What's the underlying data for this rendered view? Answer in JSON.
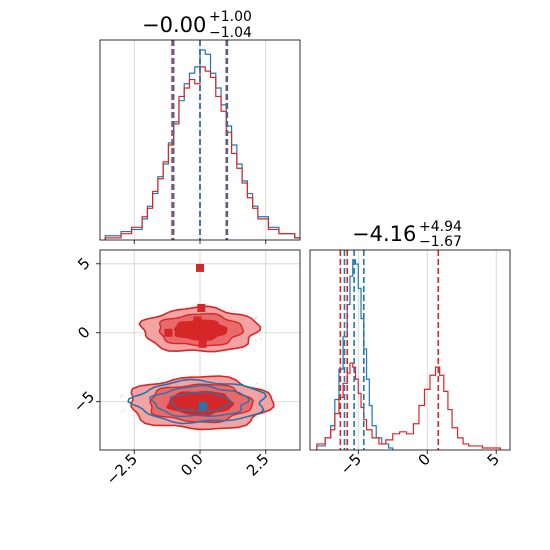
{
  "chart_data": {
    "type": "corner",
    "colors": {
      "blue": "#1f77b4",
      "red": "#d62728"
    },
    "series": [
      {
        "color": "blue"
      },
      {
        "color": "red"
      }
    ],
    "panels": [
      {
        "id": "hist-x",
        "type": "histogram",
        "title": {
          "value": "−0.00",
          "plus": "+1.00",
          "minus": "−1.04"
        },
        "xlim": [
          -3.8,
          3.8
        ],
        "grid": true,
        "tick_labels_shown": false,
        "vlines": {
          "blue": [
            -1.0,
            0.0,
            1.04
          ],
          "red": [
            -1.06,
            0.0,
            1.0
          ]
        },
        "hist_blue": [
          [
            -3.6,
            0.2
          ],
          [
            -3.0,
            0.4
          ],
          [
            -2.6,
            0.5
          ],
          [
            -2.2,
            1.0
          ],
          [
            -2.0,
            1.6
          ],
          [
            -1.8,
            2.2
          ],
          [
            -1.6,
            3.0
          ],
          [
            -1.4,
            3.6
          ],
          [
            -1.2,
            4.6
          ],
          [
            -1.0,
            5.6
          ],
          [
            -0.8,
            6.6
          ],
          [
            -0.6,
            7.4
          ],
          [
            -0.4,
            7.9
          ],
          [
            -0.2,
            8.2
          ],
          [
            0.0,
            9.0
          ],
          [
            0.2,
            8.8
          ],
          [
            0.4,
            7.9
          ],
          [
            0.6,
            7.2
          ],
          [
            0.8,
            6.4
          ],
          [
            1.0,
            5.4
          ],
          [
            1.2,
            4.5
          ],
          [
            1.4,
            3.6
          ],
          [
            1.6,
            2.8
          ],
          [
            1.8,
            2.2
          ],
          [
            2.0,
            1.6
          ],
          [
            2.2,
            1.1
          ],
          [
            2.6,
            0.6
          ],
          [
            3.0,
            0.3
          ],
          [
            3.6,
            0.1
          ]
        ],
        "hist_red": [
          [
            -3.6,
            0.1
          ],
          [
            -3.0,
            0.3
          ],
          [
            -2.6,
            0.6
          ],
          [
            -2.2,
            1.1
          ],
          [
            -2.0,
            1.5
          ],
          [
            -1.8,
            2.3
          ],
          [
            -1.6,
            2.9
          ],
          [
            -1.4,
            3.7
          ],
          [
            -1.2,
            4.5
          ],
          [
            -1.0,
            5.5
          ],
          [
            -0.8,
            6.8
          ],
          [
            -0.6,
            7.2
          ],
          [
            -0.4,
            7.6
          ],
          [
            -0.2,
            7.4
          ],
          [
            0.0,
            8.2
          ],
          [
            0.2,
            8.0
          ],
          [
            0.4,
            7.7
          ],
          [
            0.6,
            6.8
          ],
          [
            0.8,
            6.1
          ],
          [
            1.0,
            5.1
          ],
          [
            1.2,
            4.1
          ],
          [
            1.4,
            3.4
          ],
          [
            1.6,
            2.7
          ],
          [
            1.8,
            2.0
          ],
          [
            2.0,
            1.5
          ],
          [
            2.2,
            1.0
          ],
          [
            2.6,
            0.5
          ],
          [
            3.0,
            0.3
          ],
          [
            3.6,
            0.1
          ]
        ]
      },
      {
        "id": "scatter-xy",
        "type": "contour",
        "xlim": [
          -3.8,
          3.8
        ],
        "ylim": [
          -8.5,
          6.0
        ],
        "grid": true,
        "xticks": [
          -2.5,
          0.0,
          2.5
        ],
        "xtick_labels": [
          "−2.5",
          "0.0",
          "2.5"
        ],
        "yticks": [
          -5,
          0,
          5
        ],
        "ytick_labels": [
          "−5",
          "0",
          "5"
        ],
        "clusters": [
          {
            "center": [
              0.0,
              0.2
            ],
            "half_width": [
              2.2,
              1.6
            ],
            "series": "red"
          },
          {
            "center": [
              0.0,
              -5.1
            ],
            "half_width": [
              2.7,
              1.9
            ],
            "series": "red"
          },
          {
            "center": [
              0.0,
              -5.0
            ],
            "half_width": [
              2.5,
              1.5
            ],
            "series": "blue"
          }
        ],
        "truth_markers": [
          {
            "x": 0.0,
            "y": 4.7,
            "series": "red"
          },
          {
            "x": 0.05,
            "y": 1.8,
            "series": "red"
          },
          {
            "x": -0.1,
            "y": 0.9,
            "series": "red"
          },
          {
            "x": 0.0,
            "y": 0.0,
            "series": "red"
          },
          {
            "x": -1.2,
            "y": 0.0,
            "series": "red"
          },
          {
            "x": 0.1,
            "y": -0.8,
            "series": "red"
          },
          {
            "x": 0.1,
            "y": -5.3,
            "series": "blue"
          }
        ]
      },
      {
        "id": "hist-y",
        "type": "histogram",
        "title": {
          "value": "−4.16",
          "plus": "+4.94",
          "minus": "−1.67"
        },
        "xlim": [
          -8.5,
          6.0
        ],
        "grid": true,
        "xticks": [
          -5,
          0,
          5
        ],
        "xtick_labels": [
          "−5",
          "0",
          "5"
        ],
        "vlines": {
          "blue": [
            -6.0,
            -5.3,
            -4.6
          ],
          "red": [
            -6.3,
            -5.8,
            0.8
          ]
        },
        "hist_blue": [
          [
            -8.0,
            0.2
          ],
          [
            -7.4,
            0.6
          ],
          [
            -7.0,
            1.2
          ],
          [
            -6.7,
            2.5
          ],
          [
            -6.4,
            4.0
          ],
          [
            -6.1,
            5.6
          ],
          [
            -5.8,
            7.2
          ],
          [
            -5.6,
            8.6
          ],
          [
            -5.4,
            9.4
          ],
          [
            -5.2,
            9.2
          ],
          [
            -5.0,
            8.0
          ],
          [
            -4.8,
            6.5
          ],
          [
            -4.6,
            5.0
          ],
          [
            -4.4,
            3.5
          ],
          [
            -4.2,
            2.2
          ],
          [
            -4.0,
            1.2
          ],
          [
            -3.7,
            0.6
          ],
          [
            -3.3,
            0.3
          ],
          [
            -2.8,
            0.1
          ]
        ],
        "hist_red": [
          [
            -8.0,
            0.3
          ],
          [
            -7.4,
            0.6
          ],
          [
            -7.0,
            1.0
          ],
          [
            -6.7,
            1.8
          ],
          [
            -6.4,
            2.6
          ],
          [
            -6.1,
            3.3
          ],
          [
            -5.8,
            3.8
          ],
          [
            -5.6,
            4.3
          ],
          [
            -5.4,
            4.1
          ],
          [
            -5.2,
            3.5
          ],
          [
            -5.0,
            2.8
          ],
          [
            -4.8,
            2.1
          ],
          [
            -4.6,
            1.5
          ],
          [
            -4.4,
            1.0
          ],
          [
            -4.0,
            0.6
          ],
          [
            -3.5,
            0.3
          ],
          [
            -3.0,
            0.5
          ],
          [
            -2.5,
            0.8
          ],
          [
            -2.0,
            0.9
          ],
          [
            -1.5,
            0.8
          ],
          [
            -1.0,
            1.3
          ],
          [
            -0.6,
            2.2
          ],
          [
            -0.2,
            3.0
          ],
          [
            0.2,
            3.7
          ],
          [
            0.6,
            4.1
          ],
          [
            0.9,
            3.7
          ],
          [
            1.2,
            2.9
          ],
          [
            1.5,
            2.0
          ],
          [
            1.8,
            1.1
          ],
          [
            2.2,
            0.6
          ],
          [
            2.6,
            0.3
          ],
          [
            3.0,
            0.2
          ],
          [
            4.0,
            0.1
          ],
          [
            5.0,
            0.1
          ]
        ]
      }
    ]
  }
}
